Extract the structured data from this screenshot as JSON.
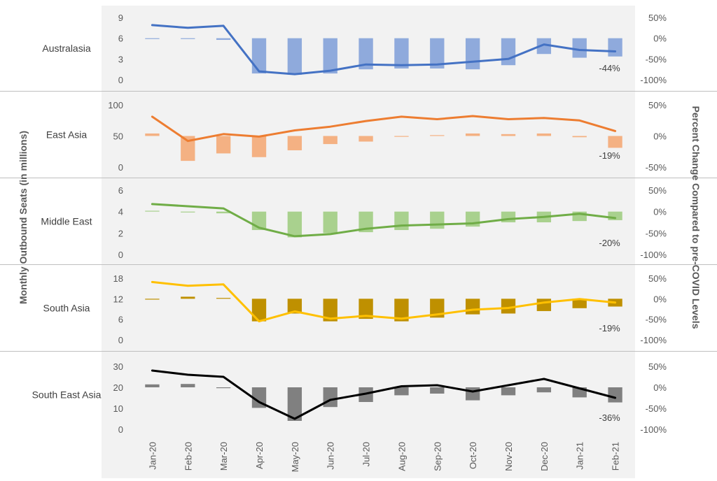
{
  "chart_data": {
    "type": "bar-line-combo",
    "ylabel_left": "Monthly Outbound Seats (in millions)",
    "ylabel_right": "Percent Change Compared to pre-COVID Levels",
    "months": [
      "Jan-20",
      "Feb-20",
      "Mar-20",
      "Apr-20",
      "May-20",
      "Jun-20",
      "Jul-20",
      "Aug-20",
      "Sep-20",
      "Oct-20",
      "Nov-20",
      "Dec-20",
      "Jan-21",
      "Feb-21"
    ],
    "grid": false,
    "panels": [
      {
        "region": "Australasia",
        "color": "#4472C4",
        "bar_color": "#8FAADC",
        "left_ticks": [
          "9",
          "6",
          "3",
          "0"
        ],
        "left_ylim": [
          0,
          9
        ],
        "right_ticks": [
          "50%",
          "0%",
          "-50%",
          "-100%"
        ],
        "right_ylim": [
          -100,
          50
        ],
        "bars_pct": [
          -2,
          -1,
          -4,
          -85,
          -88,
          -85,
          -75,
          -73,
          -73,
          -75,
          -65,
          -38,
          -47,
          -44
        ],
        "seats": [
          7.9,
          7.5,
          7.8,
          1.2,
          0.8,
          1.3,
          2.2,
          2.1,
          2.2,
          2.6,
          3.0,
          5.1,
          4.3,
          4.1
        ],
        "end_label": "-44%"
      },
      {
        "region": "East Asia",
        "color": "#ED7D31",
        "bar_color": "#F4B183",
        "left_ticks": [
          "100",
          "50",
          "0"
        ],
        "left_ylim": [
          0,
          100
        ],
        "right_ticks": [
          "50%",
          "0%",
          "-50%"
        ],
        "right_ylim": [
          -50,
          50
        ],
        "bars_pct": [
          4,
          -40,
          -28,
          -34,
          -23,
          -13,
          -9,
          -1,
          1,
          4,
          3,
          4,
          -2,
          -19
        ],
        "seats": [
          81,
          42,
          53,
          49,
          59,
          65,
          74,
          81,
          77,
          82,
          77,
          79,
          75,
          58
        ],
        "end_label": "-19%"
      },
      {
        "region": "Middle East",
        "color": "#70AD47",
        "bar_color": "#A9D18E",
        "left_ticks": [
          "6",
          "4",
          "2",
          "0"
        ],
        "left_ylim": [
          0,
          6
        ],
        "right_ticks": [
          "50%",
          "0%",
          "-50%",
          "-100%"
        ],
        "right_ylim": [
          -100,
          50
        ],
        "bars_pct": [
          0,
          -2,
          -4,
          -43,
          -60,
          -50,
          -48,
          -43,
          -40,
          -35,
          -25,
          -25,
          -22,
          -20
        ],
        "seats": [
          4.7,
          4.5,
          4.3,
          2.5,
          1.7,
          1.9,
          2.4,
          2.7,
          2.8,
          2.9,
          3.3,
          3.5,
          3.8,
          3.4
        ],
        "end_label": "-20%"
      },
      {
        "region": "South Asia",
        "color": "#FFC000",
        "bar_color": "#BF9000",
        "left_ticks": [
          "18",
          "12",
          "6",
          "0"
        ],
        "left_ylim": [
          0,
          18
        ],
        "right_ticks": [
          "50%",
          "0%",
          "-50%",
          "-100%"
        ],
        "right_ylim": [
          -100,
          50
        ],
        "bars_pct": [
          -2,
          5,
          1,
          -55,
          -36,
          -55,
          -49,
          -55,
          -46,
          -38,
          -36,
          -30,
          -23,
          -19
        ],
        "seats": [
          16.9,
          15.8,
          16.2,
          5.4,
          8.3,
          6.2,
          7.0,
          6.2,
          7.4,
          8.8,
          9.3,
          10.9,
          11.9,
          10.9
        ],
        "end_label": "-19%"
      },
      {
        "region": "South East Asia",
        "color": "#000000",
        "bar_color": "#808080",
        "left_ticks": [
          "30",
          "20",
          "10",
          "0"
        ],
        "left_ylim": [
          0,
          30
        ],
        "right_ticks": [
          "50%",
          "0%",
          "-50%",
          "-100%"
        ],
        "right_ylim": [
          -100,
          50
        ],
        "bars_pct": [
          7,
          8,
          -1,
          -49,
          -80,
          -47,
          -35,
          -19,
          -15,
          -31,
          -19,
          -12,
          -24,
          -36
        ],
        "seats": [
          28,
          26,
          25,
          13,
          5,
          14,
          17,
          20.5,
          21,
          18,
          21,
          24,
          19.5,
          15
        ],
        "end_label": "-36%"
      }
    ]
  }
}
